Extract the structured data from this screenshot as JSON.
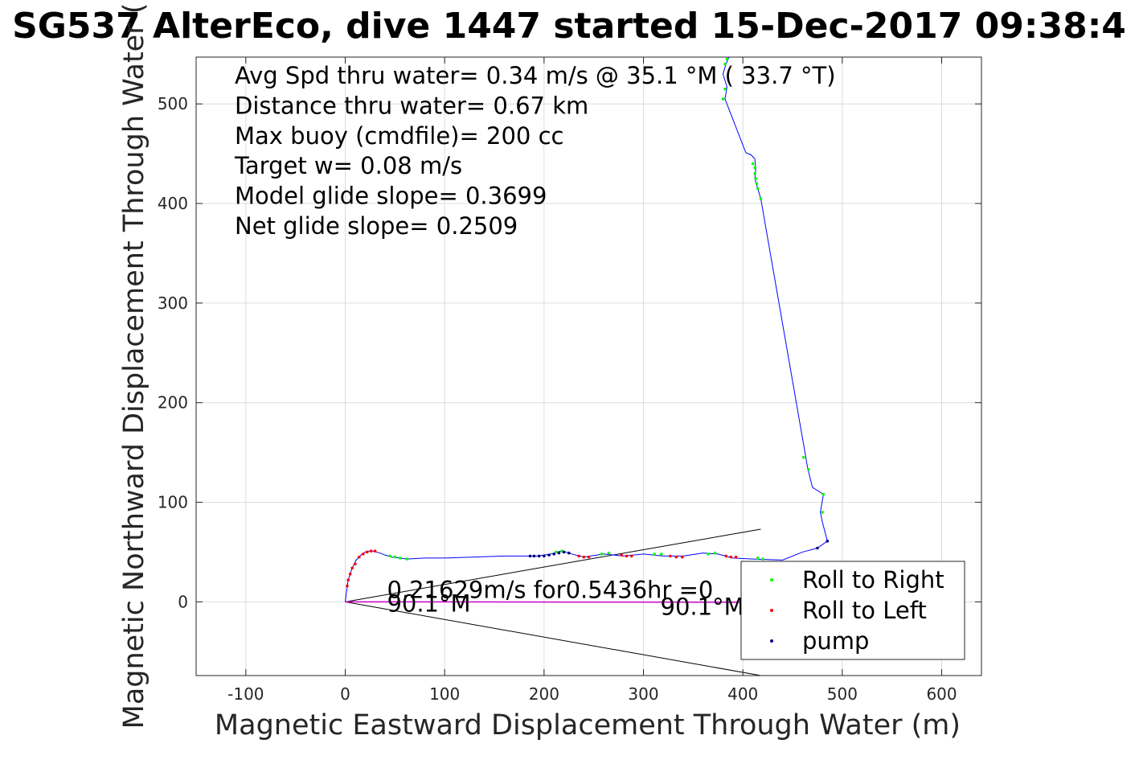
{
  "chart_data": {
    "type": "line",
    "title": "SG537 AlterEco, dive 1447 started 15-Dec-2017 09:38:4",
    "xlabel": "Magnetic Eastward Displacement Through Water (m)",
    "ylabel": "Magnetic Northward Displacement Through Water (",
    "xlim": [
      -150,
      640
    ],
    "ylim": [
      -74,
      547
    ],
    "xticks": [
      -100,
      0,
      100,
      200,
      300,
      400,
      500,
      600
    ],
    "yticks": [
      0,
      100,
      200,
      300,
      400,
      500
    ],
    "xtick_labels": [
      "-100",
      "0",
      "100",
      "200",
      "300",
      "400",
      "500",
      "600"
    ],
    "ytick_labels": [
      "0",
      "100",
      "200",
      "300",
      "400",
      "500"
    ],
    "grid": true,
    "legend_position": "bottom-right",
    "annotations": [
      "Avg Spd thru water=  0.34 m/s @  35.1 °M ( 33.7 °T)",
      "Distance thru water=  0.67 km",
      "Max buoy (cmdfile)= 200 cc",
      "Target w= 0.08 m/s",
      "Model glide slope= 0.3699",
      "Net glide slope= 0.2509"
    ],
    "plot_annotations": [
      {
        "text": "0.21629m/s for0.5436hr =0",
        "x": 42,
        "y": 4
      },
      {
        "text": "90.1°M",
        "x": 42,
        "y": -10
      },
      {
        "text": "90.1°M",
        "x": 317,
        "y": -13
      }
    ],
    "colors": {
      "track": "#0000ff",
      "roll_right": "#00ff00",
      "roll_left": "#ff0000",
      "pump": "#000080",
      "current": "#cc00cc",
      "cone": "#000000",
      "grid": "#dcdcdc"
    },
    "series": [
      {
        "name": "track",
        "x": [
          0,
          1,
          2,
          3,
          5,
          7,
          9,
          11,
          14,
          17,
          20,
          24,
          28,
          31,
          35,
          40,
          47,
          55,
          62,
          80,
          100,
          130,
          160,
          185,
          193,
          200,
          207,
          213,
          217,
          222,
          228,
          240,
          260,
          280,
          300,
          320,
          340,
          360,
          375,
          390,
          410,
          440,
          460,
          475,
          485,
          480,
          478,
          481,
          470,
          465,
          463,
          418,
          415,
          412,
          413,
          412,
          408,
          403,
          382,
          384,
          380,
          383,
          386
        ],
        "y": [
          0,
          8,
          16,
          22,
          28,
          34,
          38,
          42,
          45,
          48,
          50,
          51,
          51,
          50,
          49,
          47,
          45,
          44,
          43,
          44,
          44,
          45,
          46,
          46,
          46,
          47,
          48,
          50,
          51,
          50,
          48,
          45,
          48,
          46,
          48,
          46,
          46,
          49,
          48,
          44,
          43,
          42,
          50,
          54,
          61,
          80,
          90,
          108,
          115,
          135,
          147,
          405,
          415,
          425,
          435,
          445,
          449,
          451,
          505,
          517,
          530,
          540,
          547
        ]
      },
      {
        "name": "current",
        "x": [
          0,
          220,
          470
        ],
        "y": [
          0,
          -0.2,
          -0.4
        ]
      },
      {
        "name": "cone",
        "lines": [
          {
            "x": [
              0,
              418
            ],
            "y": [
              0,
              73
            ]
          },
          {
            "x": [
              0,
              418
            ],
            "y": [
              0,
              -74
            ]
          }
        ]
      },
      {
        "name": "Roll to Right",
        "x": [
          45,
          50,
          55,
          62,
          212,
          218,
          258,
          265,
          311,
          318,
          365,
          372,
          415,
          420,
          380,
          382,
          410,
          412,
          412,
          413,
          414,
          415,
          418,
          461,
          466,
          481,
          480,
          382,
          384
        ],
        "y": [
          46,
          45,
          44,
          43,
          50,
          51,
          48,
          49,
          48,
          48,
          48,
          49,
          44,
          43,
          505,
          515,
          440,
          436,
          430,
          425,
          420,
          415,
          405,
          145,
          133,
          108,
          90,
          540,
          545
        ]
      },
      {
        "name": "Roll to Left",
        "x": [
          2,
          3,
          5,
          7,
          10,
          14,
          18,
          22,
          26,
          30,
          235,
          240,
          245,
          278,
          283,
          288,
          327,
          333,
          339,
          383,
          388,
          393
        ],
        "y": [
          16,
          22,
          28,
          34,
          38,
          45,
          48,
          50,
          51,
          51,
          46,
          45,
          45,
          47,
          46,
          46,
          46,
          45,
          45,
          46,
          45,
          45
        ]
      },
      {
        "name": "pump",
        "x": [
          186,
          190,
          195,
          200,
          205,
          210,
          215,
          220,
          225,
          475,
          485
        ],
        "y": [
          46,
          46,
          46,
          46,
          47,
          48,
          49,
          50,
          49,
          54,
          61
        ]
      }
    ],
    "legend": [
      "Roll to Right",
      "Roll to Left",
      "pump"
    ]
  }
}
